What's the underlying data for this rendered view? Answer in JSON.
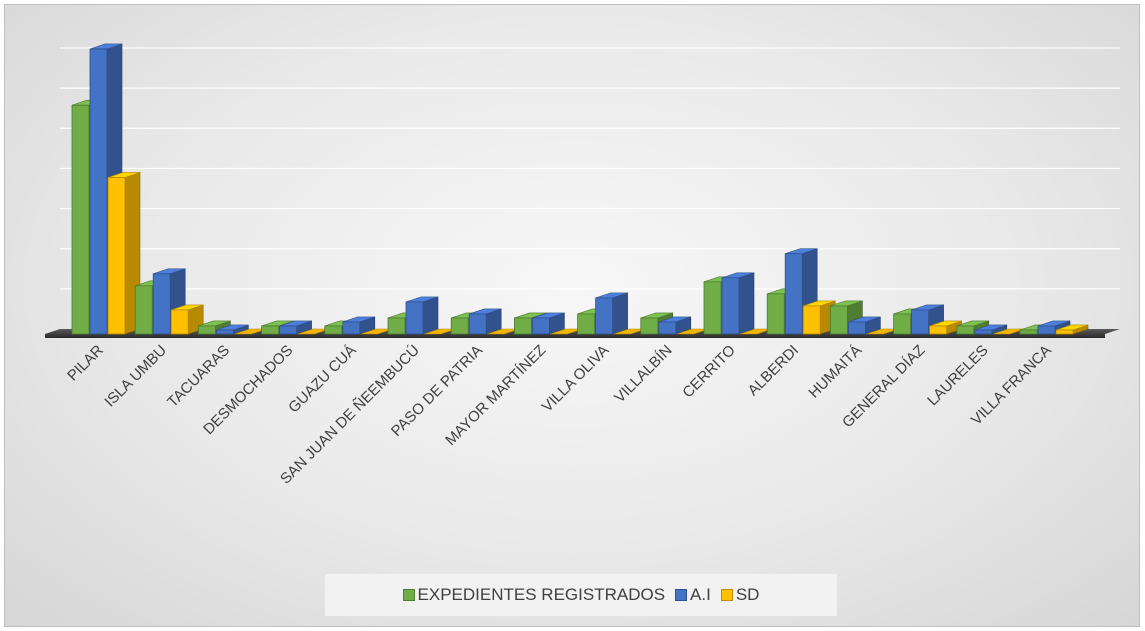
{
  "chart_data": {
    "type": "bar",
    "title": "",
    "xlabel": "",
    "ylabel": "",
    "ylim": [
      0,
      70
    ],
    "grid": true,
    "three_d": true,
    "legend_position": "bottom",
    "categories": [
      "PILAR",
      "ISLA UMBU",
      "TACUARAS",
      "DESMOCHADOS",
      "GUAZU CUÁ",
      "SAN JUAN DE ÑEEMBUCÚ",
      "PASO DE PATRIA",
      "MAYOR MARTÍNEZ",
      "VILLA OLIVA",
      "VILLALBÍN",
      "CERRITO",
      "ALBERDI",
      "HUMAITÁ",
      "GENERAL DÍAZ",
      "LAURELES",
      "VILLA FRANCA"
    ],
    "series": [
      {
        "name": "EXPEDIENTES REGISTRADOS",
        "color": "#70ad47",
        "values": [
          57,
          12,
          2,
          2,
          2,
          4,
          4,
          4,
          5,
          4,
          13,
          10,
          7,
          5,
          2,
          1
        ]
      },
      {
        "name": "A.I",
        "color": "#4472c4",
        "values": [
          71,
          15,
          1,
          2,
          3,
          8,
          5,
          4,
          9,
          3,
          14,
          20,
          3,
          6,
          1,
          2
        ]
      },
      {
        "name": "SD",
        "color": "#ffc000",
        "values": [
          39,
          6,
          0,
          0,
          0,
          0,
          0,
          0,
          0,
          0,
          0,
          7,
          0,
          2,
          0,
          1
        ]
      }
    ]
  }
}
